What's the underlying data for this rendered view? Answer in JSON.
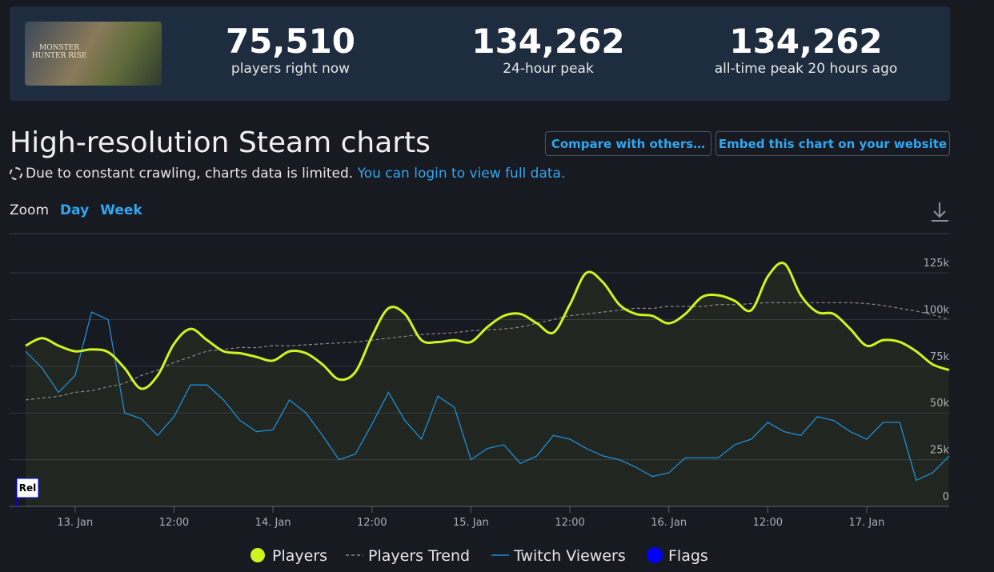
{
  "game_logo": "MONSTER HUNTER RISE",
  "stats": [
    {
      "value": "75,510",
      "label": "players right now"
    },
    {
      "value": "134,262",
      "label": "24-hour peak"
    },
    {
      "value": "134,262",
      "label": "all-time peak 20 hours ago"
    }
  ],
  "heading": "High-resolution Steam charts",
  "notice": {
    "text": "Due to constant crawling, charts data is limited.",
    "link": "You can login to view full data."
  },
  "buttons": [
    "Compare with others…",
    "Embed this chart on your website"
  ],
  "zoom": {
    "label": "Zoom",
    "options": [
      "Day",
      "Week"
    ]
  },
  "chart_data": {
    "type": "line",
    "categories": [
      null,
      null,
      null,
      "13. Jan",
      null,
      null,
      null,
      null,
      null,
      "12:00",
      null,
      null,
      null,
      null,
      null,
      "14. Jan",
      null,
      null,
      null,
      null,
      null,
      "12:00",
      null,
      null,
      null,
      null,
      null,
      "15. Jan",
      null,
      null,
      null,
      null,
      null,
      "12:00",
      null,
      null,
      null,
      null,
      null,
      "16. Jan",
      null,
      null,
      null,
      null,
      null,
      "12:00",
      null,
      null,
      null,
      null,
      null,
      "17. Jan",
      null,
      null,
      null,
      null,
      null
    ],
    "series": [
      {
        "name": "Players",
        "color": "#cdf51f",
        "style": "solid",
        "values": [
          86000,
          90000,
          86000,
          83000,
          84000,
          82600,
          74000,
          63000,
          70000,
          87000,
          95000,
          89000,
          83000,
          82000,
          80000,
          78000,
          83000,
          82000,
          76000,
          68000,
          72000,
          91000,
          106000,
          103000,
          89000,
          88000,
          89000,
          88000,
          96000,
          102000,
          103000,
          98000,
          93000,
          108000,
          125000,
          120000,
          108000,
          103000,
          102000,
          98000,
          103000,
          112000,
          113000,
          110000,
          105000,
          123000,
          130000,
          113000,
          104000,
          103000,
          95000,
          86000,
          89000,
          88000,
          83000,
          76000,
          73000
        ]
      },
      {
        "name": "Players Trend",
        "color": "#8a8a8a",
        "style": "dashed",
        "values": [
          57000,
          58000,
          59000,
          61000,
          62000,
          64000,
          66000,
          70000,
          73000,
          77000,
          80000,
          83000,
          84000,
          85000,
          85000,
          86000,
          86000,
          86500,
          87000,
          87500,
          88000,
          89000,
          90000,
          91000,
          92000,
          92500,
          93000,
          94000,
          94500,
          95000,
          96000,
          98000,
          100000,
          102000,
          103000,
          104000,
          105000,
          106000,
          106000,
          107000,
          107000,
          107000,
          108000,
          108000,
          108500,
          109000,
          109000,
          109000,
          109000,
          109000,
          109000,
          108500,
          107500,
          106000,
          104500,
          102500,
          100000
        ]
      },
      {
        "name": "Twitch Viewers",
        "color": "#1f8fd6",
        "style": "thin",
        "values": [
          83000,
          74000,
          61000,
          70000,
          104000,
          100000,
          50000,
          47000,
          38000,
          48000,
          65000,
          65000,
          57000,
          46000,
          40000,
          41000,
          57000,
          50000,
          38000,
          25000,
          28000,
          44000,
          61000,
          46000,
          36000,
          59000,
          53000,
          25000,
          31000,
          33000,
          23000,
          27000,
          38000,
          36000,
          31000,
          27000,
          25000,
          21000,
          16000,
          18000,
          26000,
          26000,
          26000,
          33000,
          36000,
          45000,
          40000,
          38000,
          48000,
          46000,
          40000,
          36000,
          45000,
          45000,
          14000,
          18000,
          27000
        ]
      }
    ],
    "flags": {
      "name": "Flags",
      "color": "#0000ff",
      "labels": [
        "Rel"
      ]
    },
    "ylim": [
      0,
      146000
    ],
    "yticks": [
      {
        "value": 0,
        "label": "0"
      },
      {
        "value": 25000,
        "label": "25k"
      },
      {
        "value": 50000,
        "label": "50k"
      },
      {
        "value": 75000,
        "label": "75k"
      },
      {
        "value": 100000,
        "label": "100k"
      },
      {
        "value": 125000,
        "label": "125k"
      }
    ],
    "grid": true
  }
}
